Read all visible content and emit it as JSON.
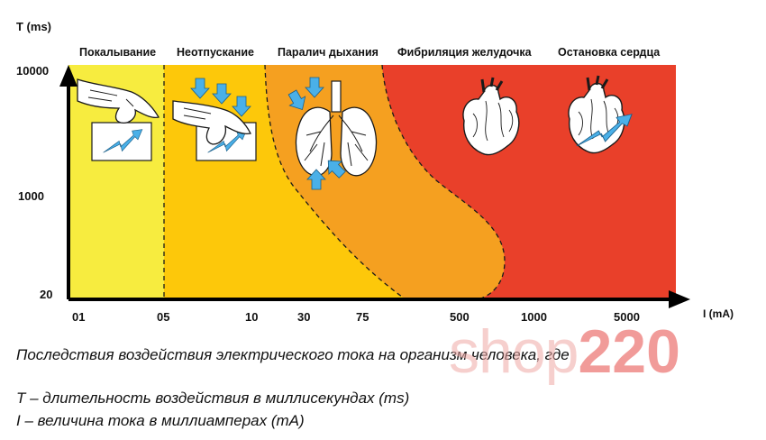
{
  "axes": {
    "y_title": "T (ms)",
    "x_title": "I (mA)",
    "y_ticks": [
      "10000",
      "1000",
      "20"
    ],
    "x_ticks": [
      "01",
      "05",
      "10",
      "30",
      "75",
      "500",
      "1000",
      "5000"
    ]
  },
  "zones": [
    {
      "label": "Покалывание",
      "color": "#f7ec3f"
    },
    {
      "label": "Неотпускание",
      "color": "#fdc80a"
    },
    {
      "label": "Паралич дыхания",
      "color": "#f5a020"
    },
    {
      "label": "Фибриляция желудочка",
      "color": "#e9402a"
    },
    {
      "label": "Остановка сердца",
      "color": "#e9402a"
    }
  ],
  "colors": {
    "arrow_blue": "#4ab0e8",
    "boundary": "#1a1a1a"
  },
  "icons": [
    "hand-touch-icon",
    "hand-grip-icon",
    "lungs-icon",
    "heart-icon",
    "heart-shock-icon"
  ],
  "caption": {
    "line1": "Последствия воздействия электрического тока на организм человека, где",
    "line2": "T – длительность воздействия в миллисекундах (ms)",
    "line3": "I – величина тока в миллиамперах (mA)"
  },
  "watermark": {
    "part1": "shop",
    "part2": "220"
  }
}
